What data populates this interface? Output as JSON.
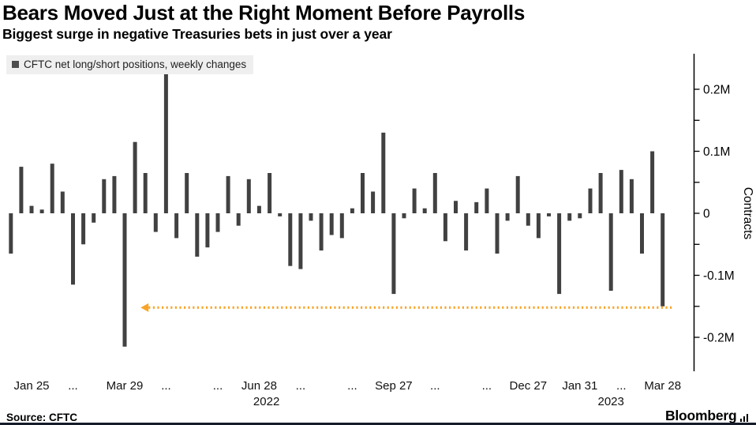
{
  "page": {
    "title": "Bears Moved Just at the Right Moment Before Payrolls",
    "subtitle": "Biggest surge in negative Treasuries bets in just over a year"
  },
  "legend": {
    "label": "CFTC net long/short positions, weekly changes",
    "swatch_color": "#4d4d4d"
  },
  "footer": {
    "source": "Source: CFTC",
    "brand": "Bloomberg"
  },
  "colors": {
    "bar": "#414141",
    "highlight": "#f7a52a",
    "axis": "#000000",
    "legend_bg": "#efefef",
    "tick_text": "#111111"
  },
  "chart_data": {
    "type": "bar",
    "title": "Bears Moved Just at the Right Moment Before Payrolls",
    "subtitle": "Biggest surge in negative Treasuries bets in just over a year",
    "series_name": "CFTC net long/short positions, weekly changes",
    "ylabel": "Contracts",
    "unit": "millions of contracts",
    "ylim": [
      -0.24,
      0.25
    ],
    "grid": false,
    "legend_position": "top-left",
    "y_ticks": [
      {
        "v": 0.2,
        "label": "0.2M"
      },
      {
        "v": 0.1,
        "label": "0.1M"
      },
      {
        "v": 0,
        "label": "0"
      },
      {
        "v": -0.1,
        "label": "-0.1M"
      },
      {
        "v": -0.2,
        "label": "-0.2M"
      }
    ],
    "y_minor_tick_step": 0.05,
    "x_ticks": [
      {
        "i": 2,
        "label": "Jan 25"
      },
      {
        "i": 6,
        "label": "..."
      },
      {
        "i": 11,
        "label": "Mar 29"
      },
      {
        "i": 15,
        "label": "..."
      },
      {
        "i": 20,
        "label": "..."
      },
      {
        "i": 24,
        "label": "Jun 28"
      },
      {
        "i": 28,
        "label": "..."
      },
      {
        "i": 33,
        "label": "..."
      },
      {
        "i": 37,
        "label": "Sep 27"
      },
      {
        "i": 41,
        "label": "..."
      },
      {
        "i": 46,
        "label": "..."
      },
      {
        "i": 50,
        "label": "Dec 27"
      },
      {
        "i": 55,
        "label": "Jan 31"
      },
      {
        "i": 59,
        "label": "..."
      },
      {
        "i": 63,
        "label": "Mar 28"
      }
    ],
    "year_ticks": [
      {
        "i": 24.7,
        "label": "2022"
      },
      {
        "i": 58.0,
        "label": "2023"
      }
    ],
    "values_millions": [
      -0.065,
      0.075,
      0.012,
      0.006,
      0.08,
      0.035,
      -0.115,
      -0.05,
      -0.015,
      0.055,
      0.06,
      -0.215,
      0.115,
      0.065,
      -0.03,
      0.225,
      -0.04,
      0.065,
      -0.07,
      -0.055,
      -0.03,
      0.06,
      -0.02,
      0.055,
      0.012,
      0.065,
      -0.005,
      -0.085,
      -0.09,
      -0.012,
      -0.06,
      -0.035,
      -0.04,
      0.008,
      0.065,
      0.035,
      0.13,
      -0.13,
      -0.008,
      0.04,
      0.008,
      0.065,
      -0.045,
      0.02,
      -0.06,
      0.018,
      0.04,
      -0.065,
      -0.012,
      0.06,
      -0.02,
      -0.04,
      -0.005,
      -0.13,
      -0.012,
      -0.008,
      0.04,
      0.065,
      -0.125,
      0.07,
      0.055,
      -0.065,
      0.1,
      -0.15
    ],
    "reference_line": {
      "value": -0.152,
      "color": "#f7a52a",
      "style": "dotted",
      "arrow": "left",
      "start_i": 13,
      "end_i": 64
    }
  }
}
